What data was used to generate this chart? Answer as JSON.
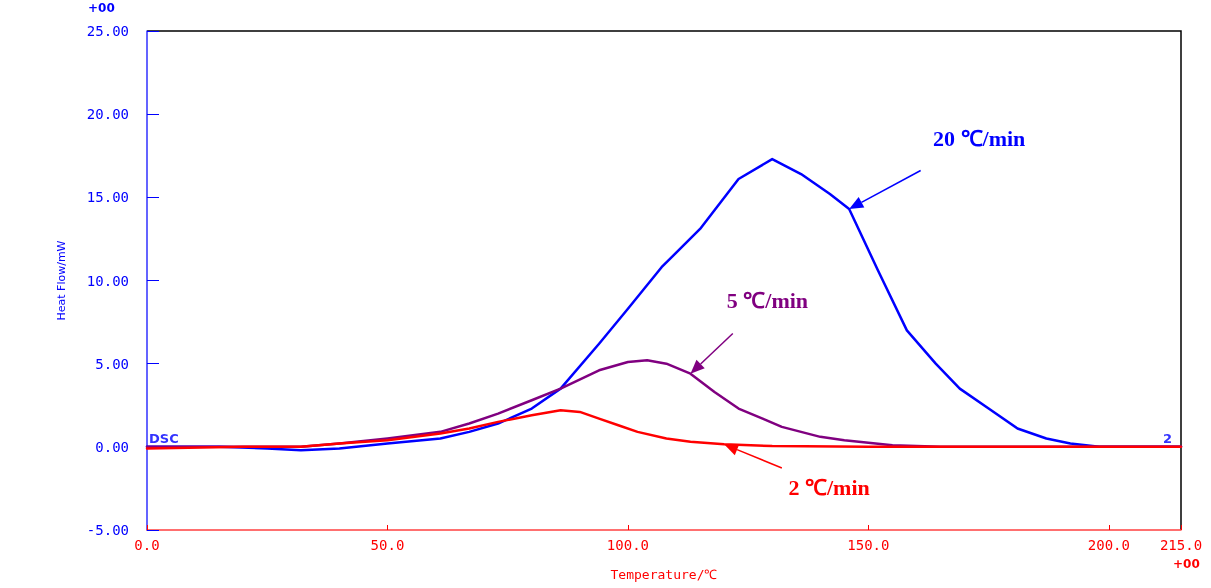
{
  "chart_data": {
    "type": "line",
    "xlabel": "Temperature/℃",
    "ylabel": "Heat Flow/mW",
    "xlim": [
      0,
      215
    ],
    "xticks": [
      {
        "value": 0,
        "label": "0.0"
      },
      {
        "value": 50,
        "label": "50.0"
      },
      {
        "value": 100,
        "label": "100.0"
      },
      {
        "value": 150,
        "label": "150.0"
      },
      {
        "value": 200,
        "label": "200.0"
      },
      {
        "value": 215,
        "label": "215.0"
      }
    ],
    "ylim": [
      -5,
      25
    ],
    "yticks": [
      {
        "value": -5,
        "label": "-5.00"
      },
      {
        "value": 0,
        "label": "0.00"
      },
      {
        "value": 5,
        "label": "5.00"
      },
      {
        "value": 10,
        "label": "10.00"
      },
      {
        "value": 15,
        "label": "15.00"
      },
      {
        "value": 20,
        "label": "20.00"
      },
      {
        "value": 25,
        "label": "25.00"
      }
    ],
    "grid": false,
    "marker": "none",
    "line_style": "solid",
    "series": [
      {
        "name": "20 ℃/min",
        "color": "#0000ff",
        "x": [
          0,
          15,
          25,
          32,
          40,
          50,
          61,
          67,
          73,
          80,
          86,
          94,
          100,
          107,
          115,
          123,
          130,
          136,
          142,
          146,
          152,
          158,
          164,
          169,
          175,
          181,
          187,
          192,
          198,
          215
        ],
        "values": [
          0,
          0,
          -0.1,
          -0.2,
          -0.1,
          0.2,
          0.5,
          0.9,
          1.4,
          2.3,
          3.5,
          6.2,
          8.3,
          10.8,
          13.1,
          16.1,
          17.3,
          16.4,
          15.2,
          14.3,
          10.6,
          7.0,
          5.0,
          3.5,
          2.3,
          1.1,
          0.5,
          0.2,
          0,
          0
        ]
      },
      {
        "name": "5 ℃/min",
        "color": "#800080",
        "x": [
          0,
          20,
          32,
          40,
          50,
          61,
          67,
          73,
          80,
          86,
          94,
          100,
          104,
          108,
          113,
          118,
          123,
          128,
          132,
          140,
          145,
          155,
          165,
          215
        ],
        "values": [
          0,
          0,
          0,
          0.2,
          0.5,
          0.9,
          1.4,
          2.0,
          2.8,
          3.5,
          4.6,
          5.1,
          5.2,
          5.0,
          4.4,
          3.3,
          2.3,
          1.7,
          1.2,
          0.6,
          0.4,
          0.1,
          0,
          0
        ]
      },
      {
        "name": "2 ℃/min",
        "color": "#ff0000",
        "x": [
          0,
          20,
          32,
          40,
          50,
          61,
          67,
          73,
          80,
          86,
          90,
          94,
          98,
          102,
          108,
          113,
          120,
          130,
          150,
          215
        ],
        "values": [
          -0.1,
          0,
          0,
          0.2,
          0.4,
          0.8,
          1.1,
          1.5,
          1.9,
          2.2,
          2.1,
          1.7,
          1.3,
          0.9,
          0.5,
          0.3,
          0.15,
          0.05,
          0,
          0
        ]
      }
    ],
    "annotations": [
      "DSC",
      "2",
      "+00",
      "+00"
    ]
  }
}
